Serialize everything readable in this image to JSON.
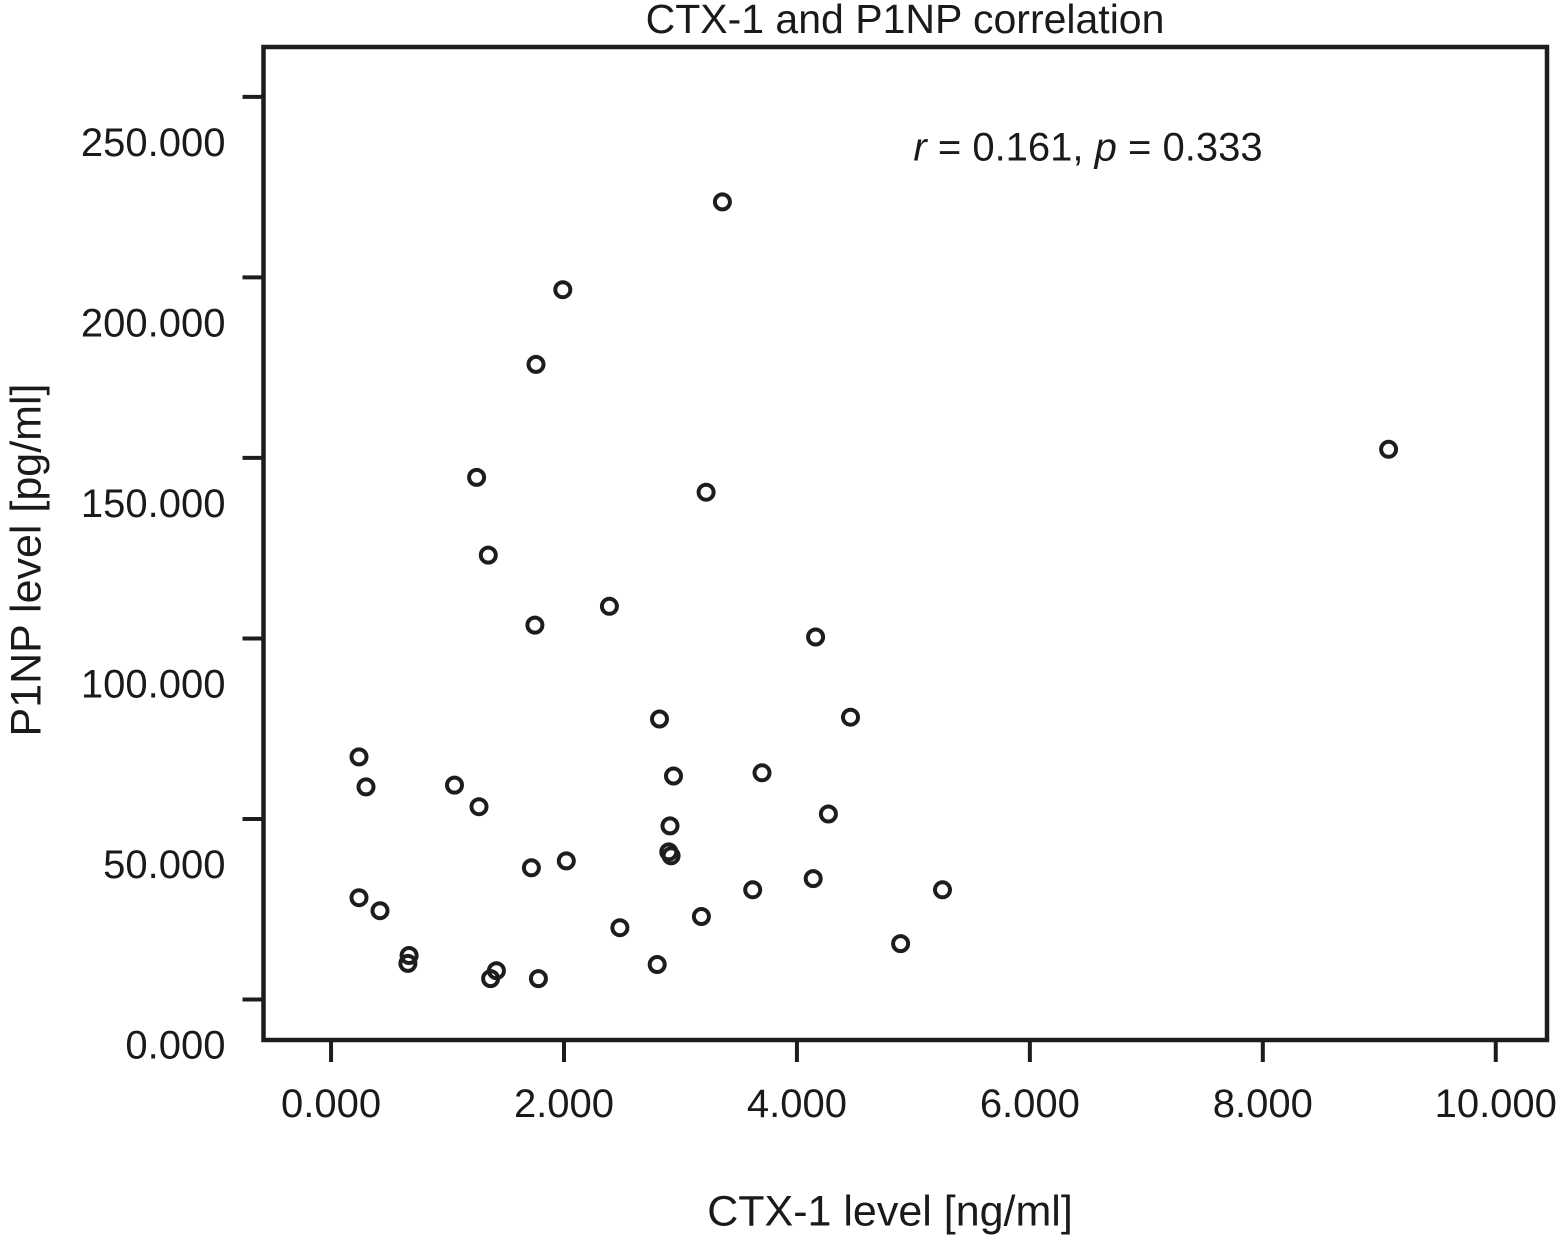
{
  "title": "CTX-1 and P1NP correlation",
  "annotation_parts": {
    "r_symbol": "r",
    "r_value": " = 0.161, ",
    "p_symbol": "p",
    "p_value": " = 0.333"
  },
  "chart_data": {
    "type": "scatter",
    "title": "CTX-1 and P1NP correlation",
    "xlabel": "CTX-1 level [ng/ml]",
    "ylabel": "P1NP level [pg/ml]",
    "annotation": "r = 0.161, p = 0.333",
    "legend": "none",
    "grid": false,
    "marker": {
      "shape": "open-circle",
      "color": "#1d1d1d"
    },
    "x_ticks": {
      "values": [
        0,
        2,
        4,
        6,
        8,
        10
      ],
      "labels": [
        "0.000",
        "2.000",
        "4.000",
        "6.000",
        "8.000",
        "10.000"
      ]
    },
    "y_ticks": {
      "values": [
        0,
        50,
        100,
        150,
        200,
        250
      ],
      "labels": [
        "0.000",
        "50.000",
        "100.000",
        "150.000",
        "200.000",
        "250.000"
      ]
    },
    "y_tick_format": "thousands shown with dot separator (250.000 = 250000 pg/ml)",
    "xlim": [
      -0.58,
      10.44
    ],
    "ylim": [
      -11.2,
      263.8
    ],
    "x_unit": "ng/ml",
    "y_unit": "thousand pg/ml",
    "points": [
      [
        3.36,
        220.9
      ],
      [
        1.99,
        196.6
      ],
      [
        1.76,
        175.9
      ],
      [
        1.25,
        144.6
      ],
      [
        3.22,
        140.5
      ],
      [
        9.08,
        152.4
      ],
      [
        1.35,
        123.1
      ],
      [
        2.39,
        108.9
      ],
      [
        1.75,
        103.7
      ],
      [
        4.16,
        100.4
      ],
      [
        2.82,
        77.7
      ],
      [
        4.46,
        78.2
      ],
      [
        0.24,
        67.2
      ],
      [
        0.3,
        58.9
      ],
      [
        1.06,
        59.4
      ],
      [
        1.27,
        53.4
      ],
      [
        2.94,
        61.9
      ],
      [
        3.7,
        62.8
      ],
      [
        4.27,
        51.4
      ],
      [
        2.91,
        48.1
      ],
      [
        2.9,
        40.9
      ],
      [
        2.92,
        39.8
      ],
      [
        1.72,
        36.5
      ],
      [
        2.02,
        38.4
      ],
      [
        4.14,
        33.5
      ],
      [
        3.62,
        30.4
      ],
      [
        5.25,
        30.4
      ],
      [
        0.24,
        28.2
      ],
      [
        0.42,
        24.6
      ],
      [
        3.18,
        23.0
      ],
      [
        2.48,
        19.9
      ],
      [
        4.89,
        15.5
      ],
      [
        0.67,
        12.2
      ],
      [
        0.66,
        10.0
      ],
      [
        1.42,
        8.0
      ],
      [
        1.37,
        5.8
      ],
      [
        1.78,
        5.8
      ],
      [
        2.8,
        9.7
      ]
    ]
  }
}
